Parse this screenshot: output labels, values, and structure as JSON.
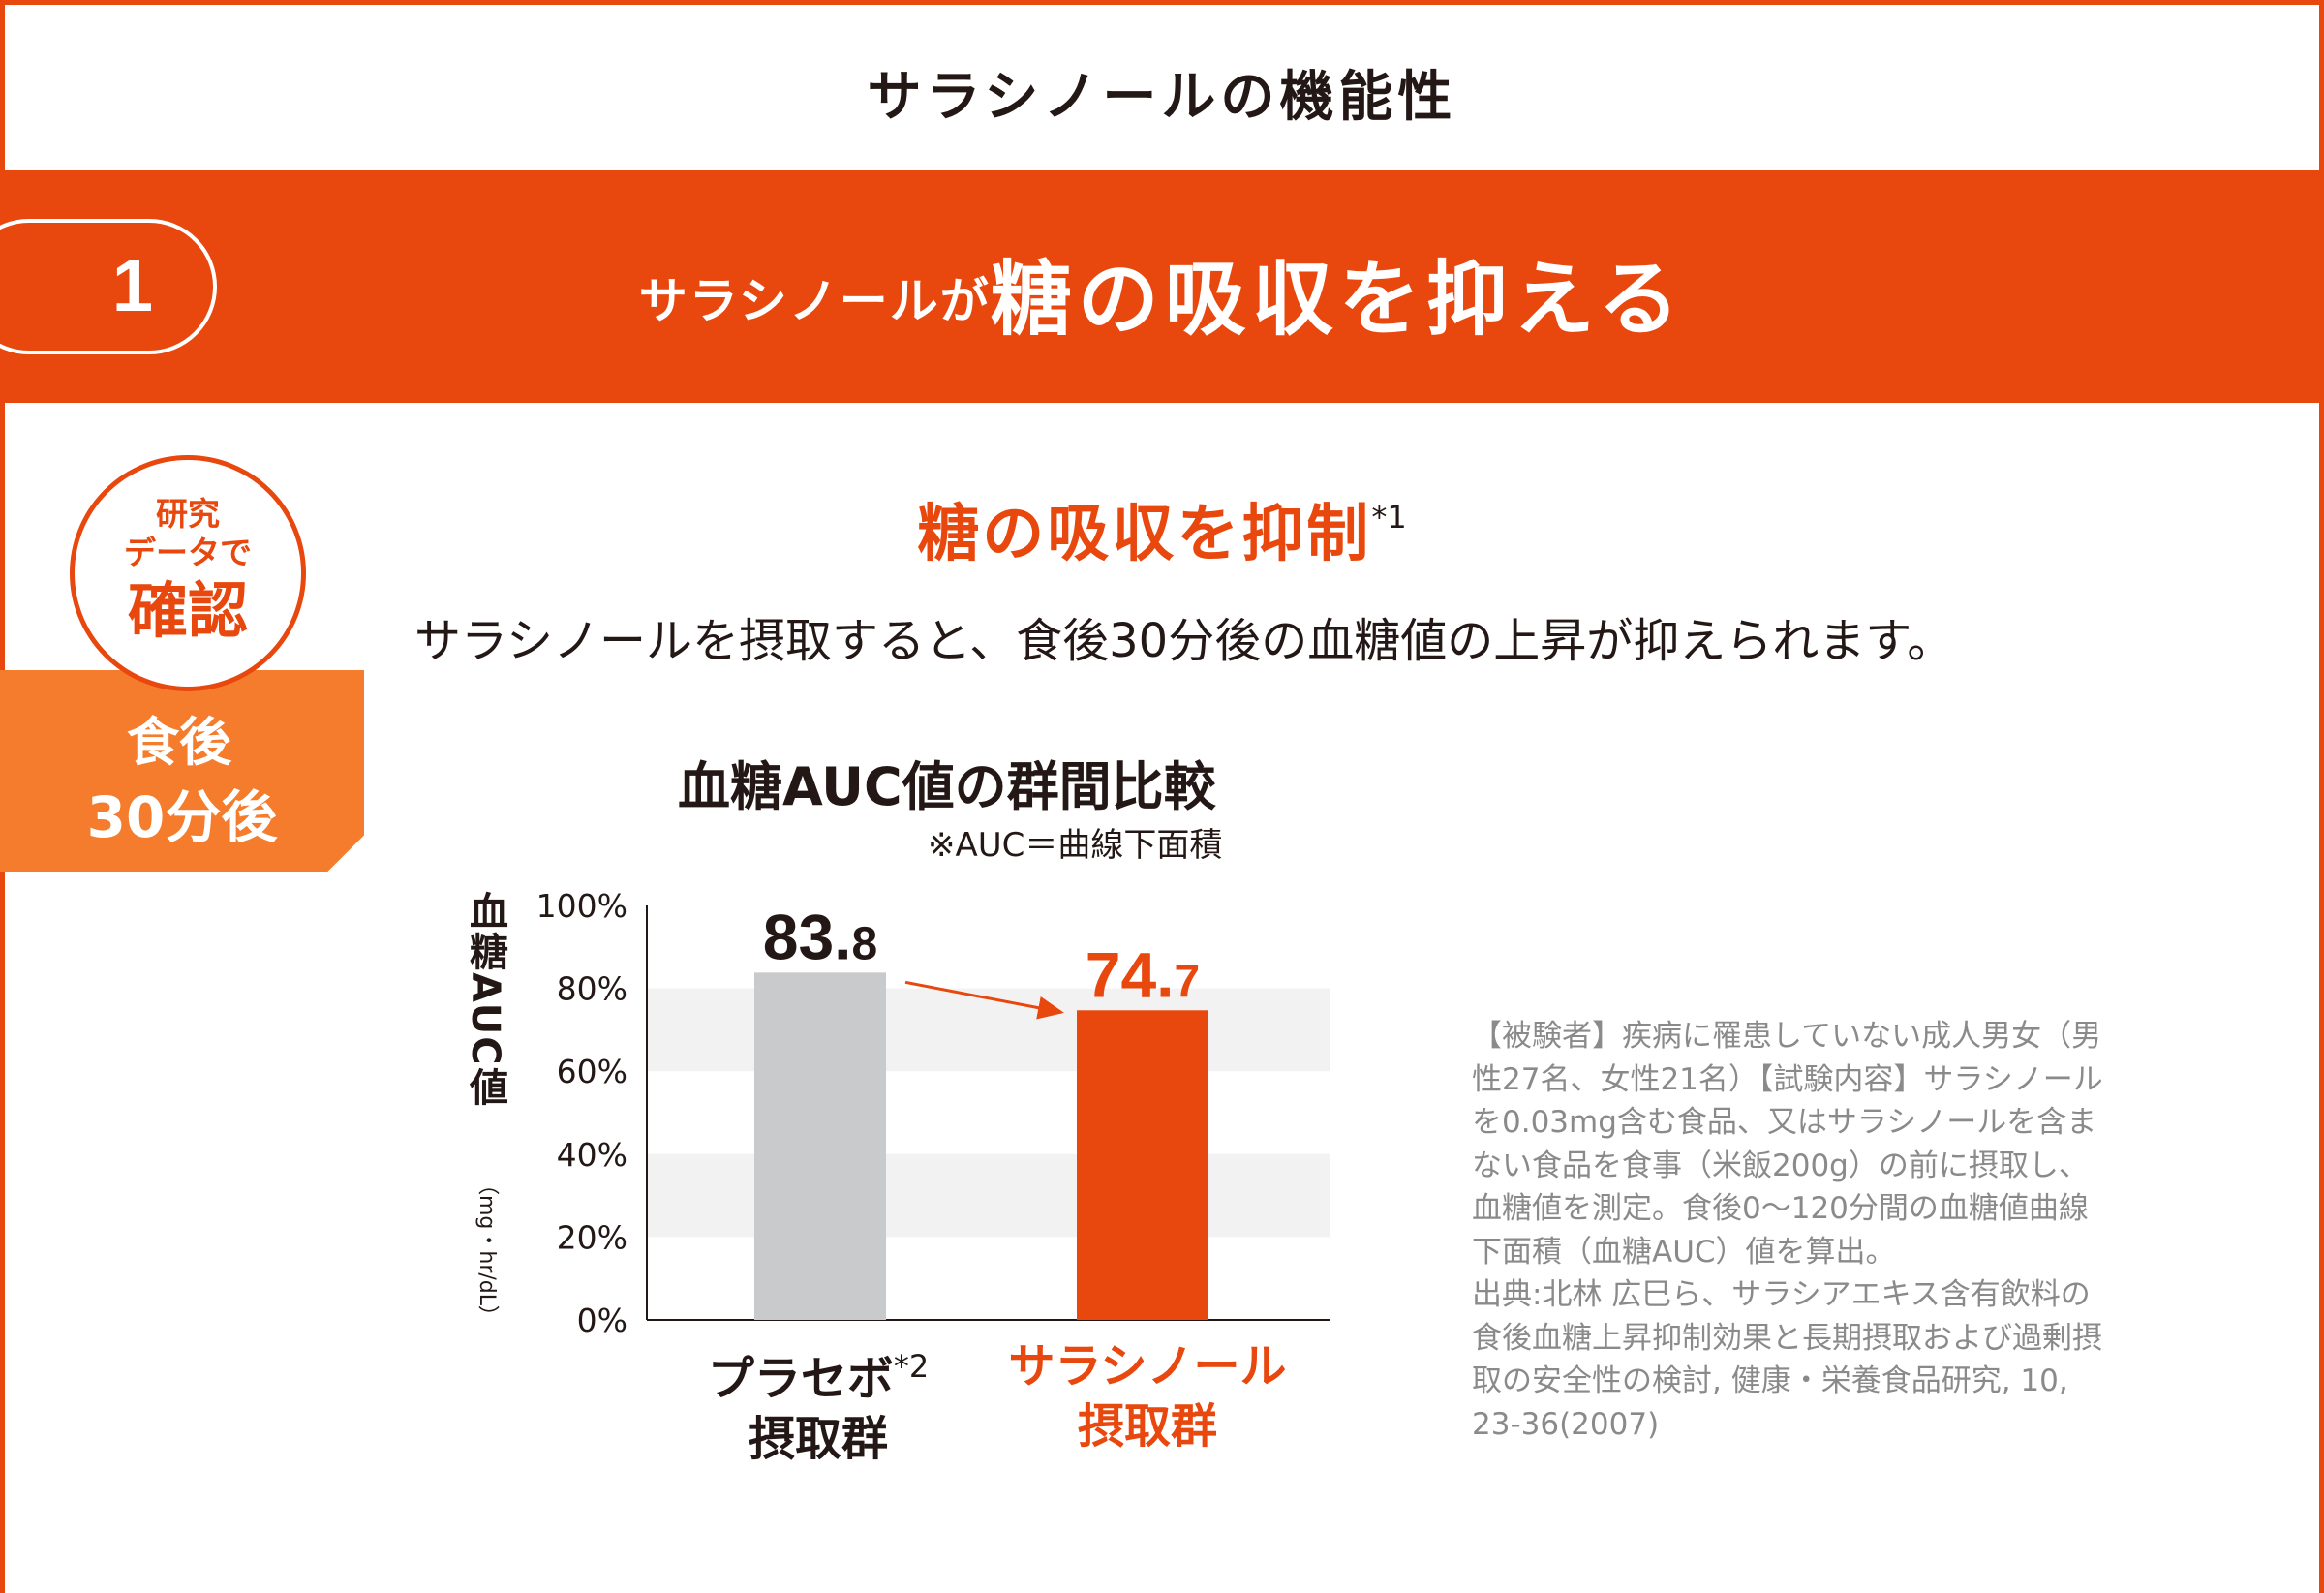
{
  "page_title": "サラシノールの機能性",
  "banner": {
    "number": "1",
    "text_small": "サラシノールが",
    "text_large": "糖の吸収を抑える"
  },
  "badge": {
    "line1": "研究",
    "line2": "データで",
    "line3": "確認"
  },
  "timing": {
    "line1": "食後",
    "line2": "30分後"
  },
  "heading": {
    "text": "糖の吸収を抑制",
    "note_mark": "*1"
  },
  "lead_text": "サラシノールを摂取すると、食後30分後の血糖値の上昇が抑えられます。",
  "chart_data": {
    "type": "bar",
    "title": "血糖AUC値の群間比較",
    "subtitle": "※AUC＝曲線下面積",
    "ylabel": "血糖AUC値",
    "yunit": "（mg・hr/dL）",
    "ylim": [
      0,
      100
    ],
    "yticks": [
      "0%",
      "20%",
      "40%",
      "60%",
      "80%",
      "100%"
    ],
    "tick_values": [
      0,
      20,
      40,
      60,
      80,
      100
    ],
    "grid": "alternating bands",
    "categories": [
      {
        "line1": "プラセボ",
        "note_mark": "*2",
        "line2": "摂取群"
      },
      {
        "line1": "サラシノール",
        "line2": "摂取群"
      }
    ],
    "values": [
      83.8,
      74.7
    ],
    "value_labels": [
      {
        "int": "83.",
        "dec": "8"
      },
      {
        "int": "74.",
        "dec": "7"
      }
    ],
    "colors": [
      "#c9cacb",
      "#e8470e"
    ],
    "annotation": "arrow from first bar to second bar"
  },
  "notes": [
    "【被験者】疾病に罹患していない成人男女（男性27名、女性21名）【試験内容】サラシノールを0.03mg含む食品、又はサラシノールを含まない食品を食事（米飯200g）の前に摂取し、血糖値を測定。食後0〜120分間の血糖値曲線下面積（血糖AUC）値を算出。",
    "出典:北林 広巳ら、サラシアエキス含有飲料の食後血糖上昇抑制効果と長期摂取および過剰摂取の安全性の検討, 健康・栄養食品研究, 10, 23-36(2007)"
  ],
  "colors": {
    "accent": "#e8470e",
    "timing_bg": "#f47c2c",
    "placebo_bar": "#c9cacb",
    "band": "#f2f2f2",
    "note_text": "#8a8a8a"
  }
}
